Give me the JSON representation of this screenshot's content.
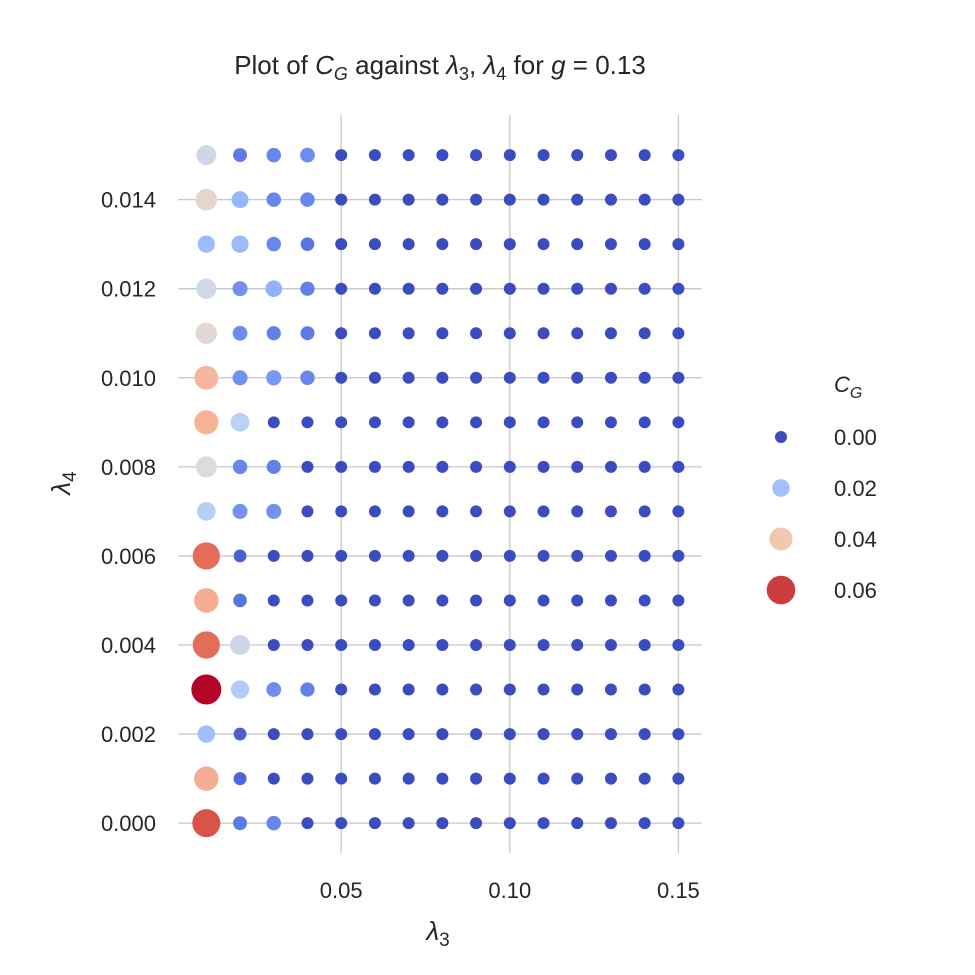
{
  "chart_data": {
    "type": "scatter",
    "title": {
      "prefix": "Plot of ",
      "mid": " against ",
      "sep": ", ",
      "for": " for ",
      "eq": " = 0.13",
      "C": "C",
      "G": "G",
      "lambda": "λ",
      "three": "3",
      "four": "4",
      "g": "g"
    },
    "xlabel": {
      "symbol": "λ",
      "sub": "3"
    },
    "ylabel": {
      "symbol": "λ",
      "sub": "4"
    },
    "xlim": [
      0.0016,
      0.157
    ],
    "ylim": [
      -0.00067,
      0.0159
    ],
    "x_ticks": [
      0.05,
      0.1,
      0.15
    ],
    "x_tick_labels": [
      "0.05",
      "0.10",
      "0.15"
    ],
    "y_ticks": [
      0.0,
      0.002,
      0.004,
      0.006,
      0.008,
      0.01,
      0.012,
      0.014
    ],
    "y_tick_labels": [
      "0.000",
      "0.002",
      "0.004",
      "0.006",
      "0.008",
      "0.010",
      "0.012",
      "0.014"
    ],
    "grid": true,
    "colormap": "coolwarm",
    "color_range": [
      0.0,
      0.065
    ],
    "x": [
      0.01,
      0.02,
      0.03,
      0.04,
      0.05,
      0.06,
      0.07,
      0.08,
      0.09,
      0.1,
      0.11,
      0.12,
      0.13,
      0.14,
      0.15
    ],
    "y": [
      0.0,
      0.001,
      0.002,
      0.003,
      0.004,
      0.005,
      0.006,
      0.007,
      0.008,
      0.009,
      0.01,
      0.011,
      0.012,
      0.013,
      0.014,
      0.015
    ],
    "grid_values_note_rows_by_y": "",
    "values": [
      [
        0.058,
        0.007,
        0.009,
        0.0,
        0.0,
        0.0,
        0.0,
        0.0,
        0.0,
        0.0,
        0.0,
        0.0,
        0.0,
        0.0,
        0.0
      ],
      [
        0.045,
        0.004,
        0.0,
        0.0,
        0.0,
        0.0,
        0.0,
        0.0,
        0.0,
        0.0,
        0.0,
        0.0,
        0.0,
        0.0,
        0.0
      ],
      [
        0.02,
        0.003,
        0.0,
        0.0,
        0.0,
        0.0,
        0.0,
        0.0,
        0.0,
        0.0,
        0.0,
        0.0,
        0.0,
        0.0,
        0.0
      ],
      [
        0.065,
        0.023,
        0.01,
        0.008,
        0.0,
        0.0,
        0.0,
        0.0,
        0.0,
        0.0,
        0.0,
        0.0,
        0.0,
        0.0,
        0.0
      ],
      [
        0.055,
        0.029,
        0.0,
        0.0,
        0.0,
        0.0,
        0.0,
        0.0,
        0.0,
        0.0,
        0.0,
        0.0,
        0.0,
        0.0,
        0.0
      ],
      [
        0.045,
        0.006,
        0.0,
        0.0,
        0.0,
        0.0,
        0.0,
        0.0,
        0.0,
        0.0,
        0.0,
        0.0,
        0.0,
        0.0,
        0.0
      ],
      [
        0.055,
        0.003,
        0.0,
        0.0,
        0.0,
        0.0,
        0.0,
        0.0,
        0.0,
        0.0,
        0.0,
        0.0,
        0.0,
        0.0,
        0.0
      ],
      [
        0.024,
        0.011,
        0.011,
        0.0,
        0.0,
        0.0,
        0.0,
        0.0,
        0.0,
        0.0,
        0.0,
        0.0,
        0.0,
        0.0,
        0.0
      ],
      [
        0.033,
        0.009,
        0.008,
        0.0,
        0.0,
        0.0,
        0.0,
        0.0,
        0.0,
        0.0,
        0.0,
        0.0,
        0.0,
        0.0,
        0.0
      ],
      [
        0.044,
        0.025,
        0.0,
        0.0,
        0.0,
        0.0,
        0.0,
        0.0,
        0.0,
        0.0,
        0.0,
        0.0,
        0.0,
        0.0,
        0.0
      ],
      [
        0.043,
        0.011,
        0.012,
        0.009,
        0.0,
        0.0,
        0.0,
        0.0,
        0.0,
        0.0,
        0.0,
        0.0,
        0.0,
        0.0,
        0.0
      ],
      [
        0.034,
        0.01,
        0.008,
        0.007,
        0.0,
        0.0,
        0.0,
        0.0,
        0.0,
        0.0,
        0.0,
        0.0,
        0.0,
        0.0,
        0.0
      ],
      [
        0.03,
        0.011,
        0.017,
        0.008,
        0.0,
        0.0,
        0.0,
        0.0,
        0.0,
        0.0,
        0.0,
        0.0,
        0.0,
        0.0,
        0.0
      ],
      [
        0.019,
        0.019,
        0.009,
        0.006,
        0.0,
        0.0,
        0.0,
        0.0,
        0.0,
        0.0,
        0.0,
        0.0,
        0.0,
        0.0,
        0.0
      ],
      [
        0.035,
        0.018,
        0.009,
        0.009,
        0.0,
        0.0,
        0.0,
        0.0,
        0.0,
        0.0,
        0.0,
        0.0,
        0.0,
        0.0,
        0.0
      ],
      [
        0.029,
        0.007,
        0.009,
        0.01,
        0.0,
        0.0,
        0.0,
        0.0,
        0.0,
        0.0,
        0.0,
        0.0,
        0.0,
        0.0,
        0.0
      ]
    ],
    "legend": {
      "position": "right",
      "title_symbol": "C",
      "title_sub": "G",
      "entries": [
        {
          "label": "0.00",
          "value": 0.0
        },
        {
          "label": "0.02",
          "value": 0.02
        },
        {
          "label": "0.04",
          "value": 0.04
        },
        {
          "label": "0.06",
          "value": 0.06
        }
      ]
    }
  }
}
